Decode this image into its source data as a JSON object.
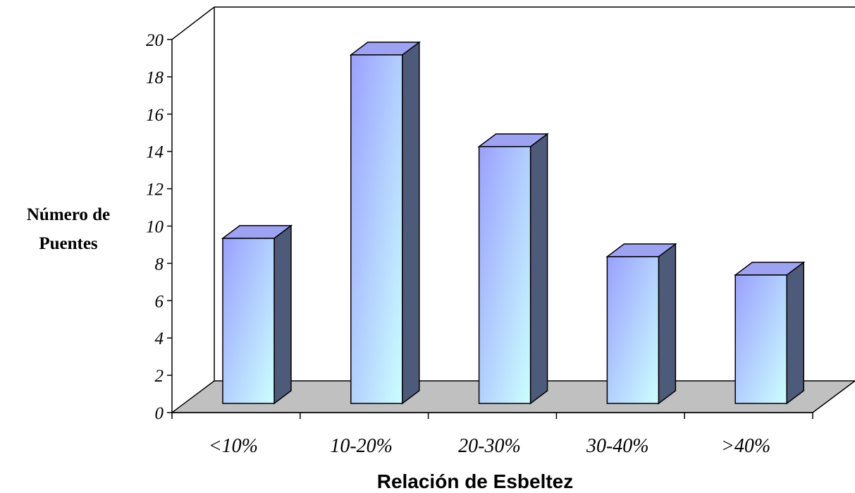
{
  "chart_data": {
    "type": "bar",
    "categories": [
      "<10%",
      "10-20%",
      "20-30%",
      "30-40%",
      ">40%"
    ],
    "values": [
      9,
      19,
      14,
      8,
      7
    ],
    "xlabel": "Relación de Esbeltez",
    "ylabel": [
      "Número de",
      "Puentes"
    ],
    "ylim": [
      0,
      20
    ],
    "yticks": [
      0,
      2,
      4,
      6,
      8,
      10,
      12,
      14,
      16,
      18,
      20
    ],
    "grid": false,
    "legend": "none",
    "colors": {
      "bar_front_top": "#9aa0ff",
      "bar_front_bottom": "#ccffff",
      "bar_top": "#9ea2f2",
      "bar_side": "#4e5a7a",
      "floor": "#c0c0c0"
    }
  }
}
